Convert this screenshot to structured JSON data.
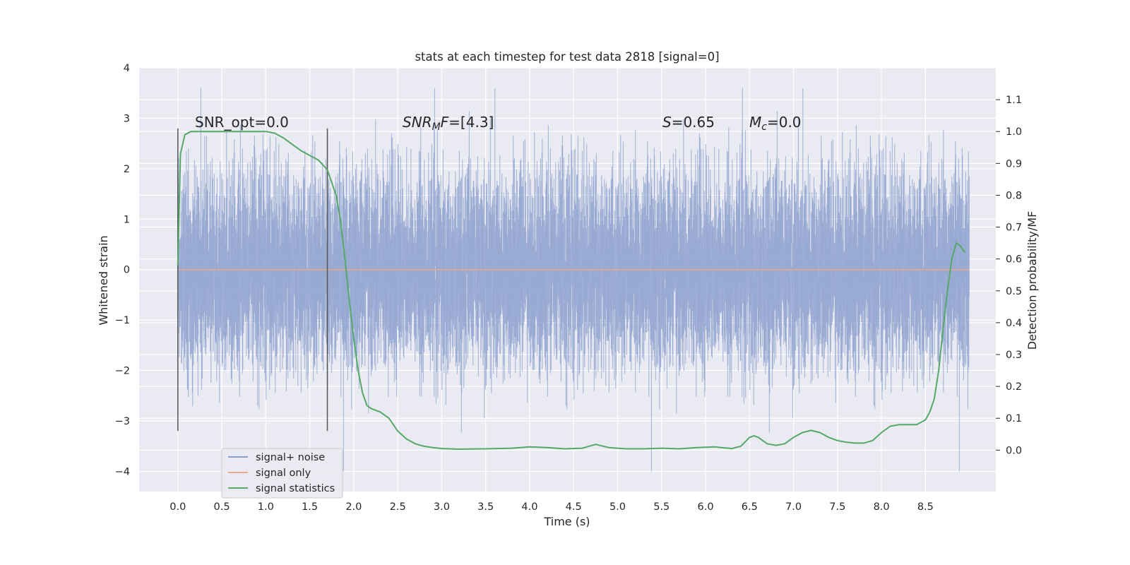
{
  "chart_data": {
    "type": "line",
    "title": "stats at each timestep for test data 2818 [signal=0]",
    "xlabel": "Time (s)",
    "ylabel": "Whitened strain",
    "y2label": "Detection probability/MF",
    "xlim": [
      -0.44,
      9.3
    ],
    "ylim": [
      -4.4,
      4.0
    ],
    "y2lim": [
      -0.13,
      1.2
    ],
    "xticks": [
      "0.0",
      "0.5",
      "1.0",
      "1.5",
      "2.0",
      "2.5",
      "3.0",
      "3.5",
      "4.0",
      "4.5",
      "5.0",
      "5.5",
      "6.0",
      "6.5",
      "7.0",
      "7.5",
      "8.0",
      "8.5"
    ],
    "yticks": [
      "4",
      "3",
      "2",
      "1",
      "0",
      "−1",
      "−2",
      "−3",
      "−4"
    ],
    "y2ticks": [
      "1.1",
      "1.0",
      "0.9",
      "0.8",
      "0.7",
      "0.6",
      "0.5",
      "0.4",
      "0.3",
      "0.2",
      "0.1",
      "0.0"
    ],
    "legend": [
      "signal+ noise",
      "signal only",
      "signal statistics"
    ],
    "colors": {
      "noise": "#8a9fcc",
      "signal_only": "#dd8452",
      "statistics": "#55a868",
      "vline": "#555555",
      "background": "#eaeaf2"
    },
    "annotations": {
      "snr_opt": "SNR_opt=0.0",
      "snr_mf_label": "SNR",
      "snr_mf_sub": "M",
      "snr_mf_tail": "F",
      "snr_mf_value": "=[4.3]",
      "s_label": "S",
      "s_value": "=0.65",
      "mc_label": "M",
      "mc_sub": "c",
      "mc_value": "=0.0"
    },
    "vertical_lines_x": [
      0.0,
      1.7
    ],
    "series": [
      {
        "name": "signal+ noise",
        "x_range": [
          0.0,
          9.0
        ],
        "description_values": "whitened noise, approx. unit variance, extremes about -4.0 to 3.6"
      },
      {
        "name": "signal only",
        "x": [
          0.0,
          9.0
        ],
        "y": [
          0.0,
          0.0
        ]
      },
      {
        "name": "signal statistics",
        "axis": "right",
        "x": [
          0.0,
          0.03,
          0.08,
          0.15,
          0.25,
          0.4,
          0.6,
          0.8,
          1.0,
          1.1,
          1.2,
          1.3,
          1.4,
          1.5,
          1.6,
          1.7,
          1.8,
          1.85,
          1.9,
          1.95,
          2.0,
          2.05,
          2.1,
          2.15,
          2.2,
          2.25,
          2.3,
          2.4,
          2.5,
          2.6,
          2.7,
          2.8,
          2.9,
          3.0,
          3.2,
          3.5,
          3.8,
          4.0,
          4.2,
          4.4,
          4.6,
          4.75,
          4.9,
          5.1,
          5.3,
          5.5,
          5.7,
          5.9,
          6.1,
          6.3,
          6.4,
          6.5,
          6.55,
          6.6,
          6.7,
          6.8,
          6.9,
          7.0,
          7.1,
          7.2,
          7.3,
          7.4,
          7.5,
          7.6,
          7.7,
          7.8,
          7.9,
          8.0,
          8.1,
          8.2,
          8.4,
          8.5,
          8.55,
          8.6,
          8.65,
          8.7,
          8.75,
          8.8,
          8.85,
          8.9,
          8.95
        ],
        "y": [
          0.58,
          0.93,
          0.99,
          1.0,
          1.0,
          1.0,
          1.0,
          1.0,
          1.0,
          0.995,
          0.98,
          0.96,
          0.94,
          0.925,
          0.91,
          0.88,
          0.8,
          0.72,
          0.6,
          0.47,
          0.35,
          0.25,
          0.18,
          0.14,
          0.13,
          0.125,
          0.12,
          0.1,
          0.06,
          0.035,
          0.02,
          0.012,
          0.008,
          0.005,
          0.003,
          0.004,
          0.006,
          0.01,
          0.008,
          0.004,
          0.006,
          0.018,
          0.008,
          0.004,
          0.004,
          0.006,
          0.004,
          0.008,
          0.01,
          0.005,
          0.012,
          0.04,
          0.045,
          0.04,
          0.02,
          0.015,
          0.02,
          0.04,
          0.055,
          0.062,
          0.055,
          0.04,
          0.03,
          0.025,
          0.022,
          0.022,
          0.03,
          0.055,
          0.075,
          0.08,
          0.08,
          0.095,
          0.12,
          0.16,
          0.25,
          0.38,
          0.5,
          0.6,
          0.65,
          0.64,
          0.62
        ]
      }
    ]
  }
}
